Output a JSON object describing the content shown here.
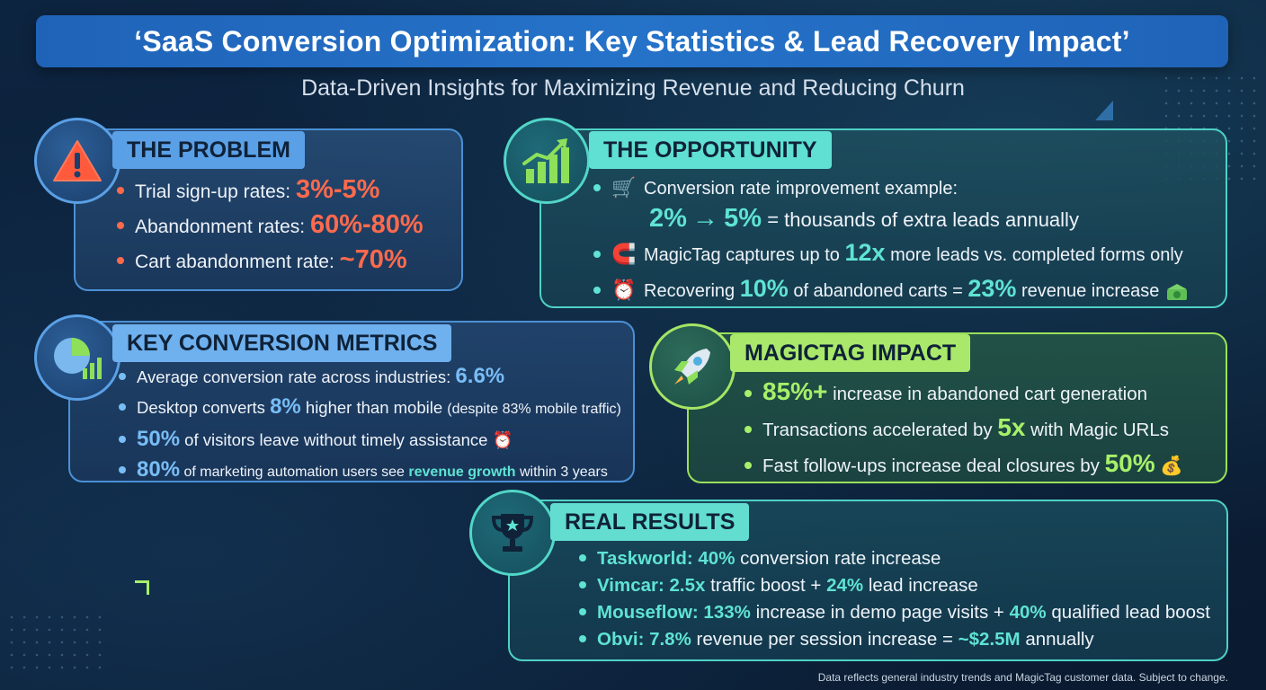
{
  "header": {
    "title": "‘SaaS Conversion Optimization: Key Statistics & Lead Recovery Impact’",
    "subtitle": "Data-Driven Insights for Maximizing Revenue and Reducing Churn"
  },
  "problem": {
    "heading": "THE PROBLEM",
    "icon": "warning-icon",
    "items": [
      {
        "label": "Trial sign-up rates: ",
        "value": "3%-5%"
      },
      {
        "label": "Abandonment rates: ",
        "value": "60%-80%"
      },
      {
        "label": "Cart abandonment rate: ",
        "value": "~70%"
      }
    ]
  },
  "opportunity": {
    "heading": "THE OPPORTUNITY",
    "icon": "growth-chart-icon",
    "item1": {
      "icon": "🛒",
      "text": "Conversion rate improvement example:",
      "from": "2%",
      "arrow": "→",
      "to": "5%",
      "rest": " = thousands of extra leads annually"
    },
    "item2": {
      "icon": "🧲",
      "pre": "MagicTag captures up to ",
      "value": "12x",
      "post": " more leads vs. completed forms only"
    },
    "item3": {
      "icon": "⏰",
      "pre": "Recovering ",
      "value1": "10%",
      "mid": " of abandoned carts = ",
      "value2": "23%",
      "post": " revenue increase"
    }
  },
  "metrics": {
    "heading": "KEY CONVERSION METRICS",
    "icon": "pie-bar-chart-icon",
    "item1": {
      "pre": "Average conversion rate across industries: ",
      "value": "6.6%"
    },
    "item2": {
      "pre": "Desktop converts ",
      "value": "8%",
      "post": " higher than mobile ",
      "small": "(despite 83% mobile traffic)"
    },
    "item3": {
      "value": "50%",
      "post": " of visitors leave without timely assistance",
      "icon": "⏰"
    },
    "item4": {
      "value": "80%",
      "pre": " of marketing automation users see ",
      "highlight": "revenue growth",
      "post": " within 3 years"
    }
  },
  "impact": {
    "heading": "MAGICTAG IMPACT",
    "icon": "rocket-icon",
    "item1": {
      "value": "85%+",
      "post": " increase in abandoned cart generation"
    },
    "item2": {
      "pre": "Transactions accelerated by ",
      "value": "5x",
      "post": " with Magic URLs"
    },
    "item3": {
      "pre": "Fast follow-ups increase deal closures by ",
      "value": "50%",
      "icon": "💰"
    }
  },
  "results": {
    "heading": "REAL RESULTS",
    "icon": "trophy-icon",
    "item1": {
      "lead": "Taskworld: 40%",
      "post": " conversion rate increase"
    },
    "item2": {
      "lead": "Vimcar: 2.5x",
      "mid": " traffic boost + ",
      "value": "24%",
      "post": " lead increase"
    },
    "item3": {
      "lead": "Mouseflow: 133%",
      "mid": " increase in demo page visits + ",
      "value": "40%",
      "post": " qualified lead boost"
    },
    "item4": {
      "lead": "Obvi: 7.8%",
      "mid": " revenue per session increase = ",
      "value": "~$2.5M",
      "post": " annually"
    }
  },
  "footnote": "Data reflects general industry trends and MagicTag customer data. Subject to change.",
  "colors": {
    "problem_accent": "#ff6a4d",
    "opportunity_accent": "#5fe3d3",
    "metrics_accent": "#79bdf5",
    "impact_accent": "#a7f06a"
  }
}
